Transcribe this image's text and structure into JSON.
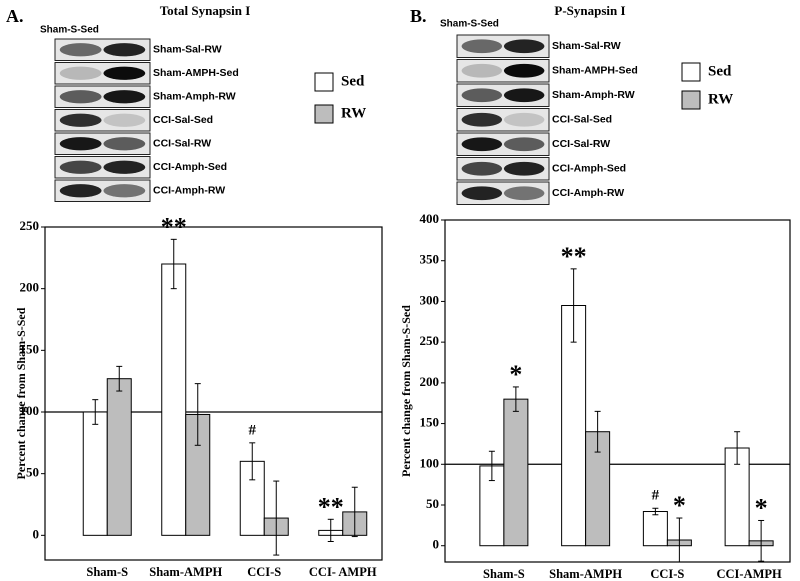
{
  "chart_data": [
    {
      "type": "bar",
      "panel": "A.",
      "title": "Total Synapsin I",
      "blot_header": "Sham-S-Sed",
      "blot_labels": [
        "Sham-Sal-RW",
        "Sham-AMPH-Sed",
        "Sham-Amph-RW",
        "CCI-Sal-Sed",
        "CCI-Sal-RW",
        "CCI-Amph-Sed",
        "CCI-Amph-RW"
      ],
      "y_label": "Percent change from Sham-S-Sed",
      "categories": [
        "Sham-S",
        "Sham-AMPH",
        "CCI-S",
        "CCI- AMPH"
      ],
      "series": [
        {
          "name": "Sed",
          "color": "#ffffff",
          "values": [
            100,
            220,
            60,
            4
          ],
          "errors": [
            10,
            20,
            15,
            9
          ],
          "annotations": [
            null,
            "**",
            "#",
            "**"
          ]
        },
        {
          "name": "RW",
          "color": "#bdbdbd",
          "values": [
            127,
            98,
            14,
            19
          ],
          "errors": [
            10,
            25,
            30,
            20
          ],
          "annotations": [
            null,
            null,
            null,
            null
          ]
        }
      ],
      "reference_line": 100,
      "ylim": [
        -20,
        250
      ],
      "yticks": [
        0,
        50,
        100,
        150,
        200,
        250
      ]
    },
    {
      "type": "bar",
      "panel": "B.",
      "title": "P-Synapsin I",
      "blot_header": "Sham-S-Sed",
      "blot_labels": [
        "Sham-Sal-RW",
        "Sham-AMPH-Sed",
        "Sham-Amph-RW",
        "CCI-Sal-Sed",
        "CCI-Sal-RW",
        "CCI-Amph-Sed",
        "CCI-Amph-RW"
      ],
      "y_label": "Percent change from Sham-S-Sed",
      "categories": [
        "Sham-S",
        "Sham-AMPH",
        "CCI-S",
        "CCI-AMPH"
      ],
      "series": [
        {
          "name": "Sed",
          "color": "#ffffff",
          "values": [
            98,
            295,
            42,
            120
          ],
          "errors": [
            18,
            45,
            4,
            20
          ],
          "annotations": [
            null,
            "**",
            "#",
            null
          ]
        },
        {
          "name": "RW",
          "color": "#bdbdbd",
          "values": [
            180,
            140,
            7,
            6
          ],
          "errors": [
            15,
            25,
            27,
            25
          ],
          "annotations": [
            "*",
            null,
            "*",
            "*"
          ]
        }
      ],
      "reference_line": 100,
      "ylim": [
        -20,
        400
      ],
      "yticks": [
        0,
        50,
        100,
        150,
        200,
        250,
        300,
        350,
        400
      ]
    }
  ]
}
